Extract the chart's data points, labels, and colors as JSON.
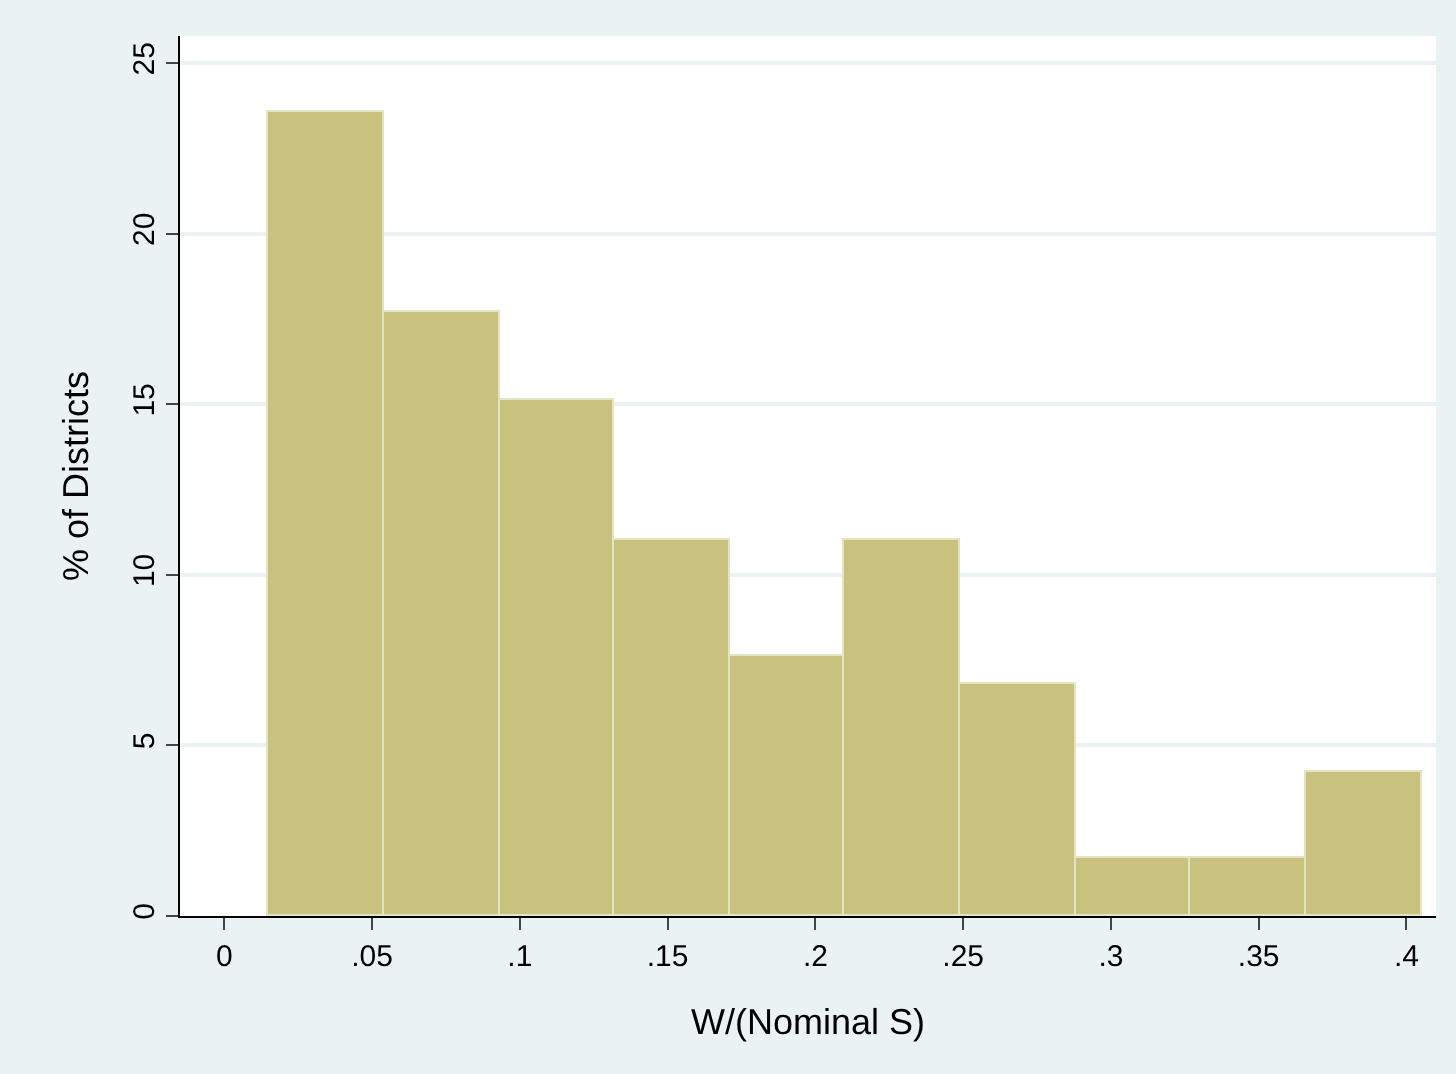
{
  "chart_data": {
    "type": "histogram",
    "xlabel": "W/(Nominal S)",
    "ylabel": "% of Districts",
    "bins": [
      0.015,
      0.054,
      0.093,
      0.132,
      0.171,
      0.21,
      0.249,
      0.288,
      0.327,
      0.366,
      0.405
    ],
    "values": [
      23.6,
      17.7,
      15.1,
      11.0,
      7.6,
      11.0,
      6.8,
      1.7,
      1.7,
      4.2
    ],
    "color": "#c9c27f",
    "xlim": [
      -0.015,
      0.41
    ],
    "ylim": [
      0,
      25.8
    ],
    "xticks": [
      {
        "value": 0,
        "label": "0"
      },
      {
        "value": 0.05,
        "label": ".05"
      },
      {
        "value": 0.1,
        "label": ".1"
      },
      {
        "value": 0.15,
        "label": ".15"
      },
      {
        "value": 0.2,
        "label": ".2"
      },
      {
        "value": 0.25,
        "label": ".25"
      },
      {
        "value": 0.3,
        "label": ".3"
      },
      {
        "value": 0.35,
        "label": ".35"
      },
      {
        "value": 0.4,
        "label": ".4"
      }
    ],
    "yticks": [
      0,
      5,
      10,
      15,
      20,
      25
    ],
    "grid": "y",
    "legend": false
  }
}
